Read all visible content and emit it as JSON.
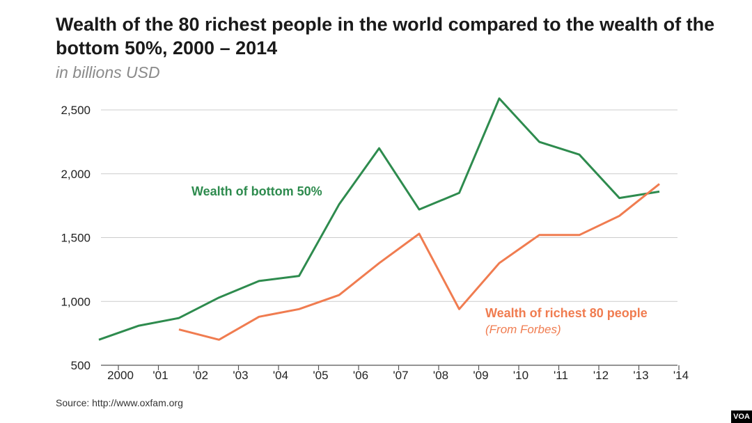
{
  "title": "Wealth of the 80 richest people in the world compared to the wealth of the bottom 50%, 2000 – 2014",
  "subtitle": "in billions USD",
  "source": "Source: http://www.oxfam.org",
  "watermark": "VOA",
  "chart_data": {
    "type": "line",
    "ylim": [
      500,
      2600
    ],
    "y_ticks": [
      500,
      1000,
      1500,
      2000,
      2500
    ],
    "y_tick_labels": [
      "500",
      "1,000",
      "1,500",
      "2,000",
      "2,500"
    ],
    "x_ticks": [
      2000,
      2001,
      2002,
      2003,
      2004,
      2005,
      2006,
      2007,
      2008,
      2009,
      2010,
      2011,
      2012,
      2013,
      2014
    ],
    "x_tick_labels": [
      "2000",
      "'01",
      "'02",
      "'03",
      "'04",
      "'05",
      "'06",
      "'07",
      "'08",
      "'09",
      "'10",
      "'11",
      "'12",
      "'13",
      "'14"
    ],
    "grid": true,
    "series": [
      {
        "name": "Wealth of bottom 50%",
        "color": "#2e8b4e",
        "x": [
          2000,
          2001,
          2002,
          2003,
          2004,
          2005,
          2006,
          2007,
          2008,
          2009,
          2010,
          2011,
          2012,
          2013,
          2014
        ],
        "values": [
          700,
          810,
          870,
          1030,
          1160,
          1200,
          1760,
          2200,
          1720,
          1850,
          2590,
          2250,
          2150,
          1810,
          1860
        ]
      },
      {
        "name": "Wealth of richest 80 people",
        "note": "(From Forbes)",
        "color": "#f07c50",
        "x": [
          2002,
          2003,
          2004,
          2005,
          2006,
          2007,
          2008,
          2009,
          2010,
          2011,
          2012,
          2013,
          2014
        ],
        "values": [
          780,
          700,
          880,
          940,
          1050,
          1300,
          1530,
          940,
          1300,
          1520,
          1520,
          1670,
          1920
        ]
      }
    ]
  }
}
